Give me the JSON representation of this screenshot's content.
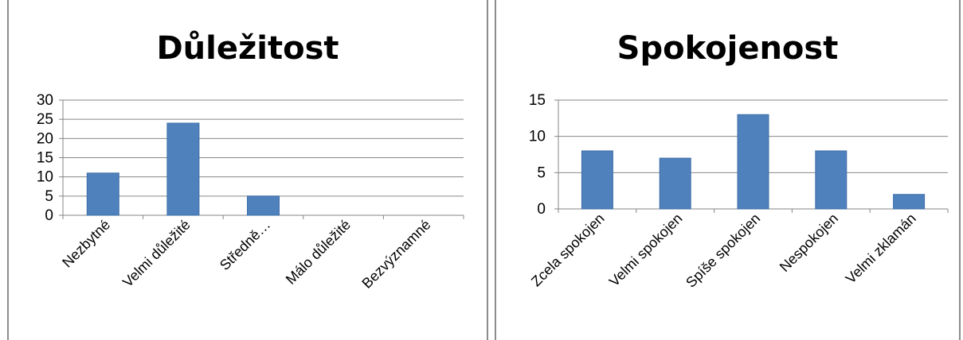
{
  "colors": {
    "bar": "#4f81bd",
    "bar_edge": "#3f6fa8",
    "grid": "#868686",
    "border": "#8c8c8c"
  },
  "chart_data": [
    {
      "type": "bar",
      "title": "Důležitost",
      "categories": [
        "Nezbytné",
        "Velmi důležité",
        "Středně…",
        "Málo důležité",
        "Bezvýznamné"
      ],
      "values": [
        11,
        24,
        5,
        0,
        0
      ],
      "yticks": [
        0,
        5,
        10,
        15,
        20,
        25,
        30
      ],
      "ylim": [
        0,
        30
      ],
      "xlabel": "",
      "ylabel": "",
      "grid": true,
      "legend": "none"
    },
    {
      "type": "bar",
      "title": "Spokojenost",
      "categories": [
        "Zcela spokojen",
        "Velmi spokojen",
        "Spíše spokojen",
        "Nespokojen",
        "Velmi zklamán"
      ],
      "values": [
        8,
        7,
        13,
        8,
        2
      ],
      "yticks": [
        0,
        5,
        10,
        15
      ],
      "ylim": [
        0,
        15
      ],
      "xlabel": "",
      "ylabel": "",
      "grid": true,
      "legend": "none"
    }
  ]
}
